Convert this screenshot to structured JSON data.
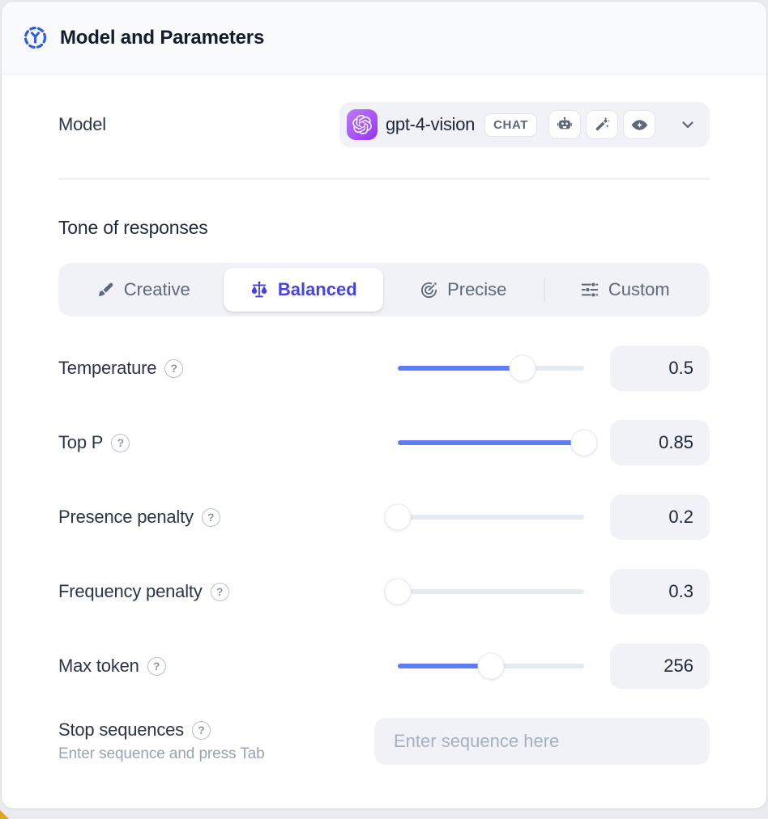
{
  "header": {
    "title": "Model and Parameters"
  },
  "model": {
    "label": "Model",
    "selected": {
      "name": "gpt-4-vision",
      "provider_icon": "openai-logo",
      "type_badge": "CHAT",
      "capability_icons": [
        "robot-icon",
        "magic-wand-icon",
        "vision-icon"
      ]
    }
  },
  "tone": {
    "heading": "Tone of responses",
    "options": [
      {
        "label": "Creative",
        "icon": "brush-icon",
        "selected": false
      },
      {
        "label": "Balanced",
        "icon": "scales-icon",
        "selected": true
      },
      {
        "label": "Precise",
        "icon": "target-icon",
        "selected": false
      },
      {
        "label": "Custom",
        "icon": "sliders-icon",
        "selected": false
      }
    ]
  },
  "parameters": [
    {
      "label": "Temperature",
      "value": "0.5",
      "slider_pct": 67
    },
    {
      "label": "Top P",
      "value": "0.85",
      "slider_pct": 100
    },
    {
      "label": "Presence penalty",
      "value": "0.2",
      "slider_pct": 0
    },
    {
      "label": "Frequency penalty",
      "value": "0.3",
      "slider_pct": 0
    },
    {
      "label": "Max token",
      "value": "256",
      "slider_pct": 50
    }
  ],
  "stop_sequences": {
    "label": "Stop sequences",
    "helper": "Enter sequence and press Tab",
    "placeholder": "Enter sequence here"
  },
  "icons": {
    "help_glyph": "?"
  },
  "colors": {
    "accent": "#4643e3",
    "slider_blue": "#5f7cf8",
    "header_icon_blue": "#2e5be8",
    "brand_purple": "#a855f7"
  }
}
